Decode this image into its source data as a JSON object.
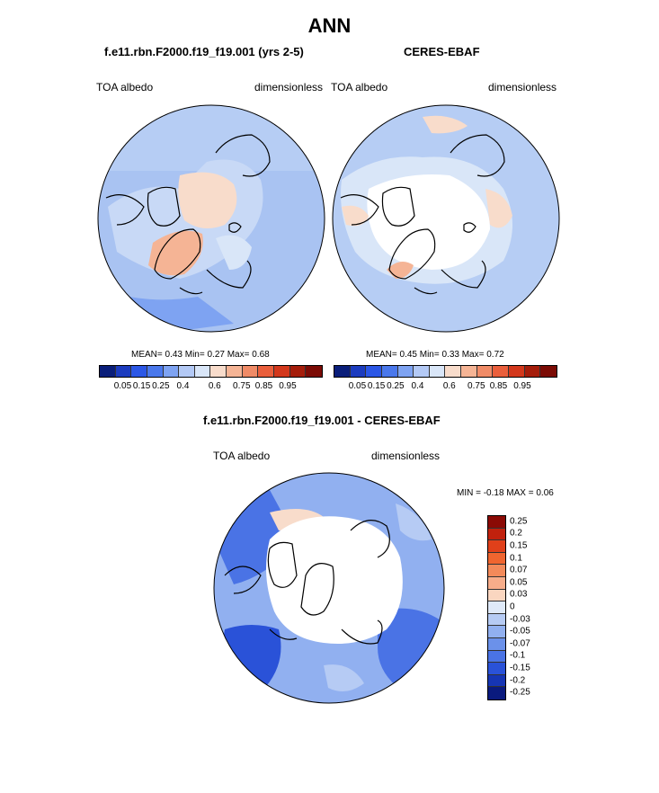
{
  "title": "ANN",
  "panels": [
    {
      "id": "model",
      "title": "f.e11.rbn.F2000.f19_f19.001 (yrs 2-5)",
      "left_label": "TOA albedo",
      "right_label": "dimensionless",
      "stats": "MEAN=   0.43  Min=   0.27  Max=   0.68"
    },
    {
      "id": "obs",
      "title": "CERES-EBAF",
      "left_label": "TOA albedo",
      "right_label": "dimensionless",
      "stats": "MEAN=   0.45  Min=   0.33  Max=   0.72"
    }
  ],
  "colorbar_top": {
    "colors": [
      "#0a1e7a",
      "#1c3cbf",
      "#2b57e6",
      "#4a78ec",
      "#7ea3f2",
      "#b3c9f5",
      "#d9e6f8",
      "#f8dccb",
      "#f5b495",
      "#f08b67",
      "#ea5f3c",
      "#d3381c",
      "#a51d0b",
      "#7b0b05"
    ],
    "ticks": [
      "0.05",
      "0.15",
      "0.25",
      "0.4",
      "0.6",
      "0.75",
      "0.85",
      "0.95"
    ]
  },
  "diff_panel": {
    "title": "f.e11.rbn.F2000.f19_f19.001 - CERES-EBAF",
    "left_label": "TOA albedo",
    "right_label": "dimensionless",
    "minmax": "MIN =  -0.18 MAX =   0.06"
  },
  "colorbar_diff": {
    "colors": [
      "#8b0a05",
      "#c1210d",
      "#e0401a",
      "#f0652f",
      "#f38a5a",
      "#f7ad8a",
      "#fad6c0",
      "#dfe9f8",
      "#b6cbf4",
      "#91b0f0",
      "#6b91ea",
      "#4a73e5",
      "#2a52d8",
      "#1635b4",
      "#0a1a7e"
    ],
    "labels": [
      "0.25",
      "0.2",
      "0.15",
      "0.1",
      "0.07",
      "0.05",
      "0.03",
      "0",
      "-0.03",
      "-0.05",
      "-0.07",
      "-0.1",
      "-0.15",
      "-0.2",
      "-0.25"
    ]
  }
}
